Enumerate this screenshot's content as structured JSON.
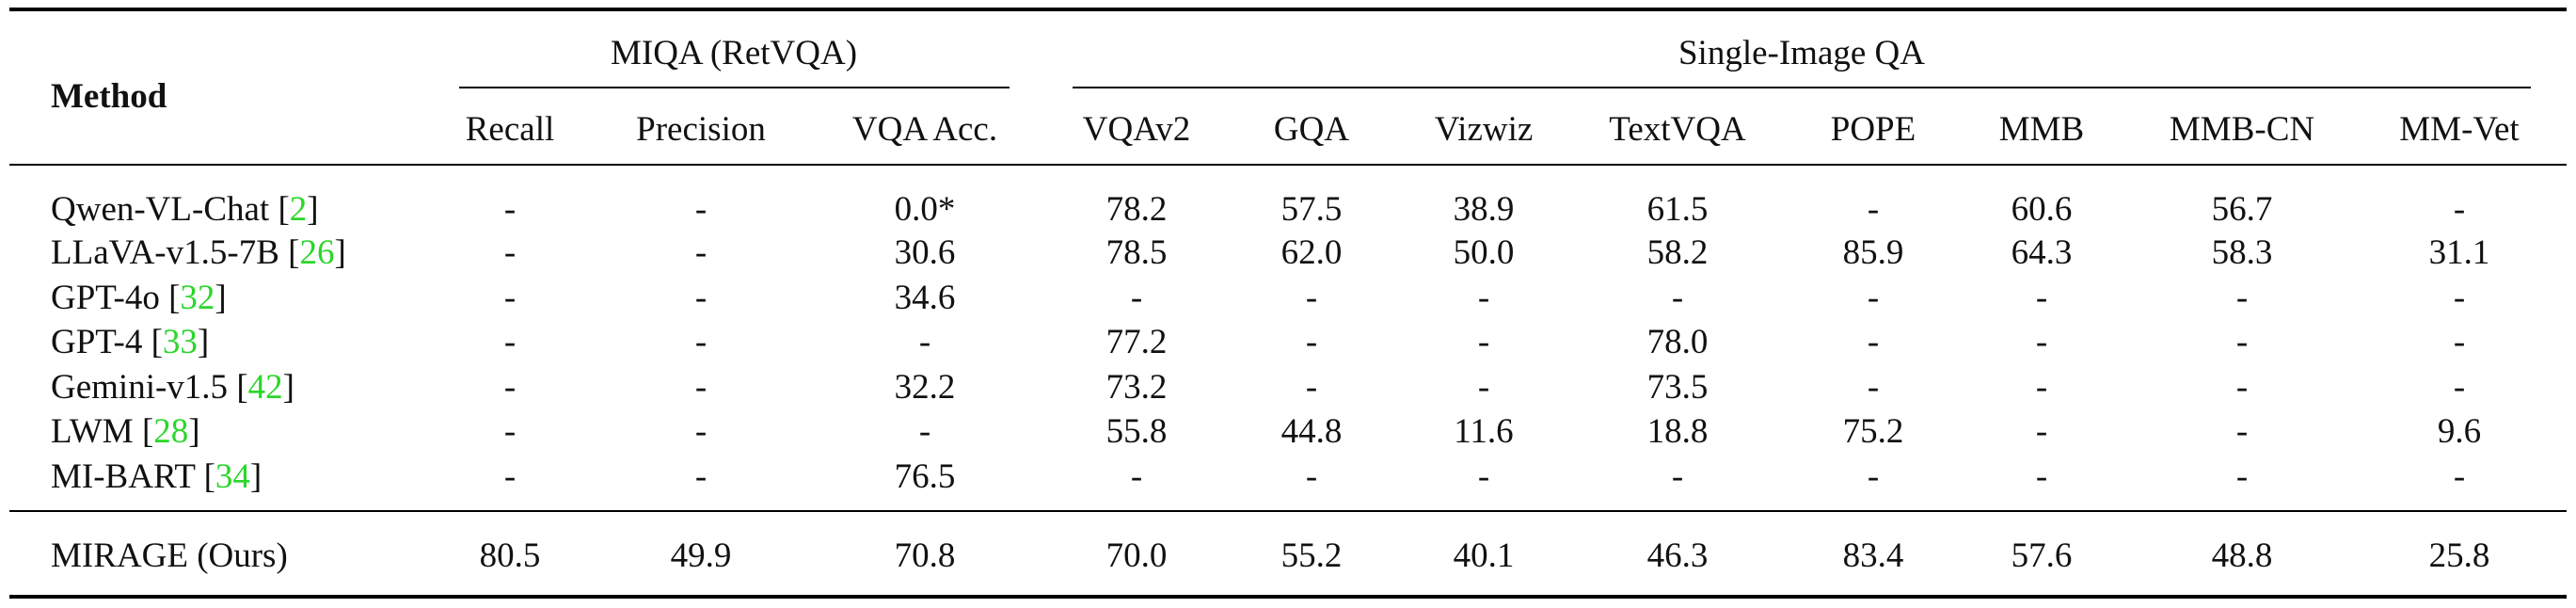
{
  "table": {
    "header": {
      "method": "Method",
      "group_miqa": "MIQA (RetVQA)",
      "group_single": "Single-Image QA",
      "columns": [
        "Recall",
        "Precision",
        "VQA Acc.",
        "VQAv2",
        "GQA",
        "Vizwiz",
        "TextVQA",
        "POPE",
        "MMB",
        "MMB-CN",
        "MM-Vet"
      ]
    },
    "rows": [
      {
        "method": "Qwen-VL-Chat",
        "cite": "2",
        "values": [
          "-",
          "-",
          "0.0*",
          "78.2",
          "57.5",
          "38.9",
          "61.5",
          "-",
          "60.6",
          "56.7",
          "-"
        ]
      },
      {
        "method": "LLaVA-v1.5-7B",
        "cite": "26",
        "values": [
          "-",
          "-",
          "30.6",
          "78.5",
          "62.0",
          "50.0",
          "58.2",
          "85.9",
          "64.3",
          "58.3",
          "31.1"
        ]
      },
      {
        "method": "GPT-4o",
        "cite": "32",
        "values": [
          "-",
          "-",
          "34.6",
          "-",
          "-",
          "-",
          "-",
          "-",
          "-",
          "-",
          "-"
        ]
      },
      {
        "method": "GPT-4",
        "cite": "33",
        "values": [
          "-",
          "-",
          "-",
          "77.2",
          "-",
          "-",
          "78.0",
          "-",
          "-",
          "-",
          "-"
        ]
      },
      {
        "method": "Gemini-v1.5",
        "cite": "42",
        "values": [
          "-",
          "-",
          "32.2",
          "73.2",
          "-",
          "-",
          "73.5",
          "-",
          "-",
          "-",
          "-"
        ]
      },
      {
        "method": "LWM",
        "cite": "28",
        "values": [
          "-",
          "-",
          "-",
          "55.8",
          "44.8",
          "11.6",
          "18.8",
          "75.2",
          "-",
          "-",
          "9.6"
        ]
      },
      {
        "method": "MI-BART",
        "cite": "34",
        "values": [
          "-",
          "-",
          "76.5",
          "-",
          "-",
          "-",
          "-",
          "-",
          "-",
          "-",
          "-"
        ]
      }
    ],
    "ours": {
      "method": "MIRAGE (Ours)",
      "values": [
        "80.5",
        "49.9",
        "70.8",
        "70.0",
        "55.2",
        "40.1",
        "46.3",
        "83.4",
        "57.6",
        "48.8",
        "25.8"
      ]
    },
    "colors": {
      "citation": "#2bd62b",
      "rule": "#000000"
    }
  }
}
